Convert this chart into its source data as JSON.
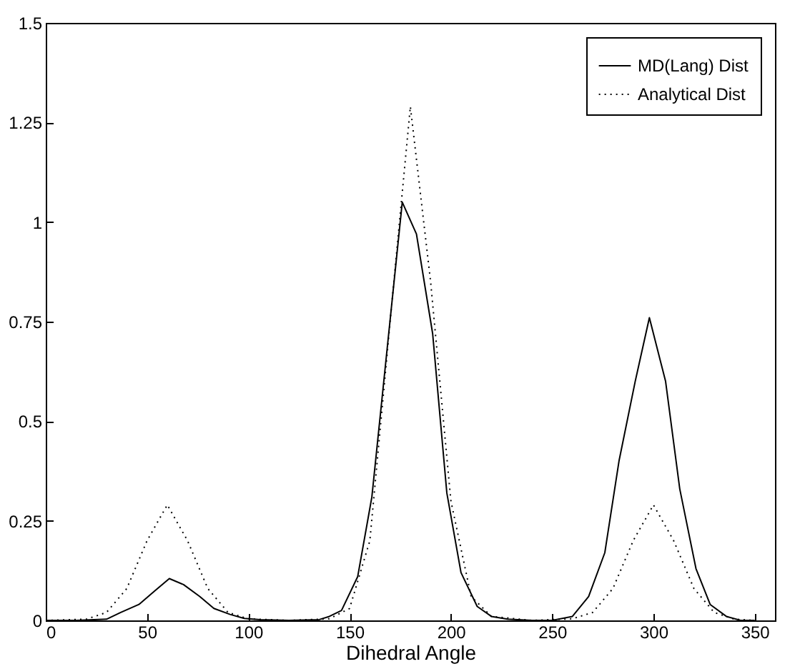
{
  "chart_data": {
    "type": "line",
    "xlabel": "Dihedral Angle",
    "xlim": [
      0,
      360
    ],
    "xticks": [
      0,
      50,
      100,
      150,
      200,
      250,
      300,
      350
    ],
    "ylim": [
      0,
      1.5
    ],
    "yticks": [
      0,
      0.25,
      0.5,
      0.75,
      1,
      1.25,
      1.5
    ],
    "grid": false,
    "legend": "top right",
    "marker": "none",
    "series": [
      {
        "name": "MD(Lang) Dist",
        "color": "#000000",
        "line_style": "solid",
        "x": [
          0,
          15,
          30,
          37,
          46,
          54,
          61,
          68,
          76,
          83,
          91,
          98,
          106,
          120,
          135,
          140,
          146,
          154,
          161,
          176,
          183,
          191,
          198,
          205,
          213,
          220,
          228,
          240,
          250,
          260,
          268,
          276,
          283,
          291,
          298,
          306,
          313,
          321,
          328,
          336,
          343,
          350
        ],
        "values": [
          0,
          0,
          0.003,
          0.02,
          0.04,
          0.075,
          0.105,
          0.09,
          0.06,
          0.03,
          0.015,
          0.005,
          0.002,
          0,
          0.002,
          0.01,
          0.025,
          0.11,
          0.31,
          1.05,
          0.97,
          0.72,
          0.32,
          0.12,
          0.035,
          0.01,
          0.003,
          0,
          0,
          0.01,
          0.06,
          0.17,
          0.4,
          0.6,
          0.76,
          0.6,
          0.33,
          0.13,
          0.04,
          0.01,
          0,
          0
        ]
      },
      {
        "name": "Analytical Dist",
        "color": "#000000",
        "line_style": "dotted",
        "x": [
          0,
          20,
          30,
          40,
          50,
          60,
          70,
          80,
          90,
          100,
          120,
          140,
          150,
          160,
          170,
          180,
          190,
          200,
          210,
          220,
          240,
          260,
          270,
          280,
          290,
          300,
          310,
          320,
          330,
          340,
          350
        ],
        "values": [
          0,
          0.003,
          0.02,
          0.08,
          0.2,
          0.29,
          0.2,
          0.08,
          0.02,
          0.004,
          0,
          0.004,
          0.03,
          0.2,
          0.75,
          1.29,
          0.85,
          0.3,
          0.06,
          0.01,
          0,
          0.004,
          0.02,
          0.08,
          0.2,
          0.29,
          0.2,
          0.08,
          0.02,
          0.003,
          0
        ]
      }
    ]
  }
}
